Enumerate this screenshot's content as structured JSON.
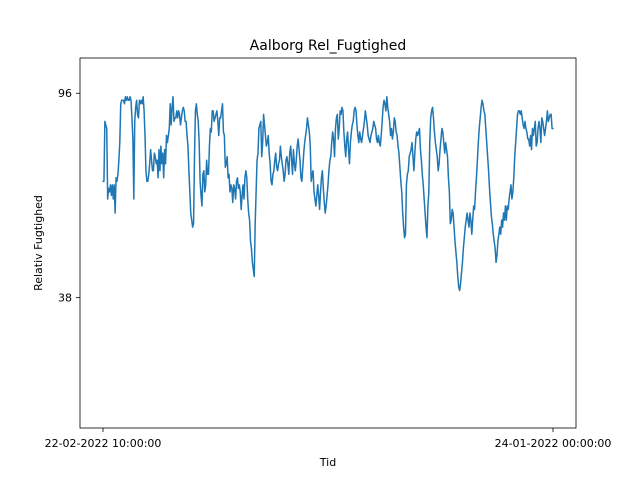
{
  "chart_data": {
    "type": "line",
    "title": "Aalborg Rel_Fugtighed",
    "xlabel": "Tid",
    "ylabel": "Relativ Fugtighed",
    "x_ticks": [
      "22-02-2022 10:00:00",
      "24-01-2022 00:00:00"
    ],
    "y_ticks": [
      38,
      96
    ],
    "ylim": [
      1,
      106
    ],
    "grid": false,
    "series": [
      {
        "color": "#1f77b4",
        "values": [
          71,
          71,
          88,
          87,
          86,
          66,
          69,
          68,
          70,
          67,
          70,
          66,
          70,
          62,
          72,
          71,
          73,
          77,
          82,
          93,
          94,
          94,
          94,
          93,
          95,
          94,
          95,
          94,
          94,
          95,
          94,
          89,
          83,
          66,
          88,
          92,
          94,
          90,
          89,
          94,
          93,
          94,
          93,
          95,
          91,
          84,
          74,
          71,
          71,
          73,
          76,
          80,
          77,
          74,
          74,
          79,
          78,
          76,
          77,
          72,
          80,
          74,
          81,
          76,
          79,
          72,
          80,
          76,
          84,
          82,
          84,
          86,
          93,
          87,
          92,
          95,
          88,
          89,
          89,
          91,
          89,
          91,
          90,
          87,
          89,
          91,
          92,
          91,
          88,
          88,
          84,
          81,
          74,
          68,
          62,
          60,
          58,
          59,
          78,
          91,
          93,
          90,
          88,
          82,
          71,
          67,
          64,
          73,
          74,
          68,
          70,
          77,
          73,
          73,
          81,
          86,
          85,
          91,
          91,
          88,
          89,
          90,
          91,
          88,
          84,
          89,
          89,
          91,
          93,
          85,
          84,
          75,
          76,
          78,
          72,
          73,
          68,
          70,
          69,
          65,
          70,
          69,
          66,
          71,
          72,
          69,
          70,
          68,
          63,
          67,
          70,
          66,
          72,
          74,
          72,
          66,
          62,
          60,
          54,
          52,
          48,
          46,
          44,
          59,
          68,
          77,
          79,
          86,
          87,
          88,
          78,
          82,
          90,
          87,
          84,
          81,
          82,
          84,
          79,
          76,
          71,
          70,
          73,
          74,
          77,
          79,
          75,
          74,
          76,
          77,
          81,
          78,
          76,
          74,
          71,
          73,
          77,
          78,
          76,
          73,
          79,
          81,
          77,
          73,
          80,
          76,
          74,
          77,
          81,
          83,
          80,
          77,
          72,
          71,
          75,
          79,
          82,
          84,
          86,
          89,
          87,
          85,
          81,
          71,
          73,
          74,
          68,
          66,
          64,
          67,
          70,
          67,
          63,
          68,
          72,
          74,
          69,
          65,
          62,
          64,
          67,
          70,
          74,
          77,
          78,
          82,
          85,
          83,
          78,
          86,
          89,
          90,
          83,
          86,
          91,
          90,
          92,
          91,
          85,
          81,
          78,
          83,
          85,
          80,
          76,
          82,
          85,
          87,
          88,
          91,
          92,
          91,
          87,
          84,
          82,
          85,
          83,
          82,
          84,
          86,
          88,
          91,
          89,
          87,
          84,
          83,
          82,
          84,
          85,
          86,
          88,
          87,
          86,
          83,
          82,
          84,
          82,
          81,
          84,
          88,
          92,
          94,
          93,
          91,
          95,
          92,
          90,
          88,
          84,
          86,
          83,
          85,
          89,
          88,
          85,
          84,
          81,
          79,
          75,
          71,
          68,
          62,
          58,
          55,
          56,
          70,
          73,
          74,
          78,
          79,
          80,
          82,
          78,
          74,
          79,
          83,
          85,
          84,
          85,
          86,
          80,
          77,
          73,
          70,
          66,
          62,
          58,
          55,
          64,
          68,
          82,
          89,
          91,
          92,
          89,
          85,
          82,
          80,
          78,
          74,
          76,
          80,
          83,
          86,
          85,
          82,
          79,
          82,
          80,
          78,
          72,
          68,
          59,
          60,
          63,
          62,
          58,
          54,
          51,
          48,
          44,
          41,
          40,
          42,
          45,
          48,
          52,
          55,
          58,
          60,
          62,
          60,
          58,
          62,
          60,
          56,
          60,
          64,
          63,
          68,
          72,
          77,
          82,
          86,
          89,
          92,
          94,
          93,
          91,
          90,
          86,
          82,
          78,
          74,
          69,
          65,
          61,
          59,
          56,
          54,
          52,
          48,
          50,
          54,
          56,
          58,
          56,
          60,
          58,
          62,
          60,
          64,
          60,
          64,
          63,
          66,
          68,
          70,
          66,
          68,
          72,
          78,
          82,
          86,
          90,
          91,
          91,
          90,
          91,
          89,
          87,
          86,
          88,
          86,
          85,
          83,
          83,
          81,
          84,
          80,
          86,
          84,
          86,
          88,
          81,
          82,
          86,
          88,
          86,
          82,
          89,
          88,
          86,
          84,
          86,
          88,
          91,
          88,
          89,
          90,
          90,
          86,
          86
        ]
      }
    ]
  }
}
